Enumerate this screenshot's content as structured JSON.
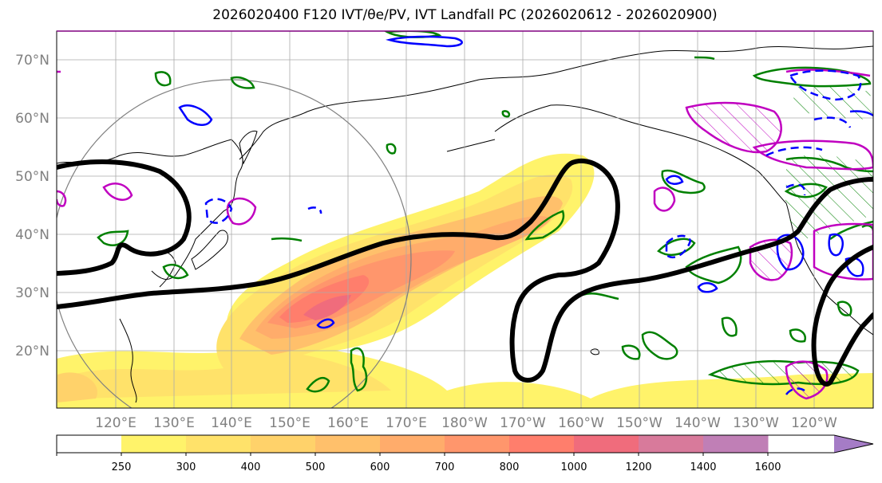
{
  "figure": {
    "title": "2026020400 F120 IVT/θe/PV, IVT Landfall PC (2026020612 - 2026020900)"
  },
  "map": {
    "lat_labels": [
      "70°N",
      "60°N",
      "50°N",
      "40°N",
      "30°N",
      "20°N"
    ],
    "lon_labels": [
      "120°E",
      "130°E",
      "140°E",
      "150°E",
      "160°E",
      "170°E",
      "180°W",
      "170°W",
      "160°W",
      "150°W",
      "140°W",
      "130°W",
      "120°W"
    ]
  },
  "colorbar": {
    "levels": [
      "250",
      "300",
      "400",
      "500",
      "600",
      "700",
      "800",
      "1000",
      "1200",
      "1400",
      "1600"
    ],
    "colors": [
      "#ffffff",
      "#fff36a",
      "#ffe26a",
      "#ffd26a",
      "#ffc06b",
      "#ffac6b",
      "#ff966c",
      "#ff7e6c",
      "#f06c7c",
      "#d87a9b",
      "#c07fb6",
      "#a57cc6"
    ]
  },
  "colors": {
    "ivt_low": "#fff36a",
    "ivt_mid": "#ffc06b",
    "ivt_high": "#ff7e6c",
    "ivt_max": "#d87a9b",
    "pv_contour": "#000000",
    "theta_e_contour": "#008000",
    "blue_contour": "#0000ff",
    "magenta_contour": "#c000c0",
    "circle": "#808080"
  }
}
